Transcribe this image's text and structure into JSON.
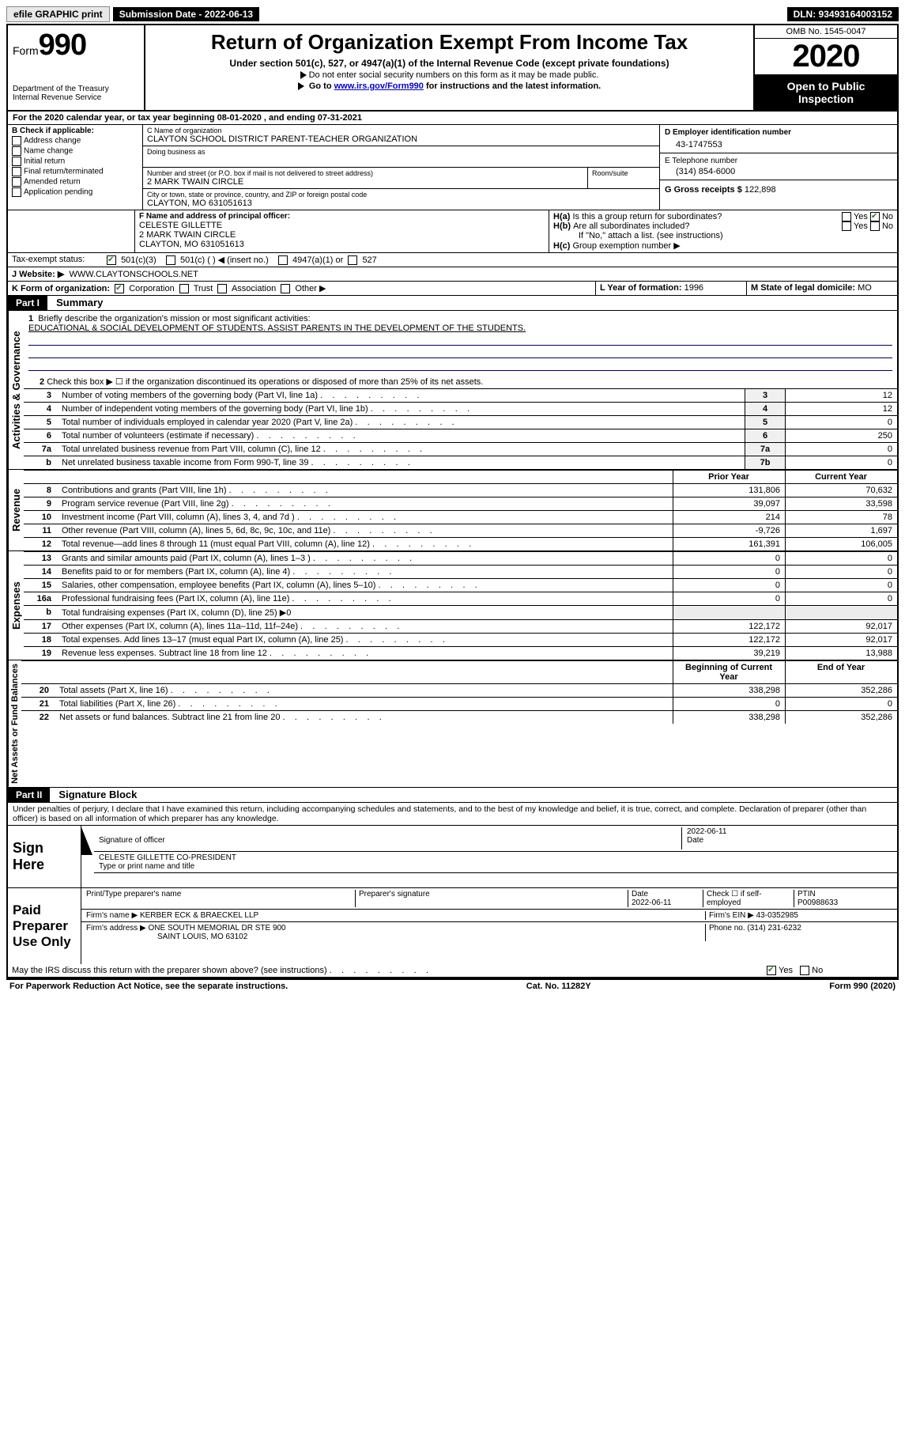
{
  "topbar": {
    "efile": "efile GRAPHIC print",
    "submission_label": "Submission Date - 2022-06-13",
    "dln_label": "DLN: 93493164003152"
  },
  "header": {
    "form_word": "Form",
    "form_number": "990",
    "dept": "Department of the Treasury",
    "irs": "Internal Revenue Service",
    "title": "Return of Organization Exempt From Income Tax",
    "subtitle": "Under section 501(c), 527, or 4947(a)(1) of the Internal Revenue Code (except private foundations)",
    "note1": "Do not enter social security numbers on this form as it may be made public.",
    "note2_pre": "Go to ",
    "note2_link": "www.irs.gov/Form990",
    "note2_post": " for instructions and the latest information.",
    "omb": "OMB No. 1545-0047",
    "year": "2020",
    "inspection1": "Open to Public",
    "inspection2": "Inspection"
  },
  "line_a": "For the 2020 calendar year, or tax year beginning 08-01-2020    , and ending 07-31-2021",
  "section_b": {
    "title": "B Check if applicable:",
    "items": [
      "Address change",
      "Name change",
      "Initial return",
      "Final return/terminated",
      "Amended return",
      "Application pending"
    ]
  },
  "section_c": {
    "name_label": "C Name of organization",
    "name": "CLAYTON SCHOOL DISTRICT PARENT-TEACHER ORGANIZATION",
    "dba_label": "Doing business as",
    "street_label": "Number and street (or P.O. box if mail is not delivered to street address)",
    "room_label": "Room/suite",
    "street": "2 MARK TWAIN CIRCLE",
    "city_label": "City or town, state or province, country, and ZIP or foreign postal code",
    "city": "CLAYTON, MO  631051613"
  },
  "section_d": {
    "label": "D Employer identification number",
    "value": "43-1747553"
  },
  "section_e": {
    "label": "E Telephone number",
    "value": "(314) 854-6000"
  },
  "section_g": {
    "label": "G Gross receipts $",
    "value": "122,898"
  },
  "section_f": {
    "label": "F Name and address of principal officer:",
    "name": "CELESTE GILLETTE",
    "street": "2 MARK TWAIN CIRCLE",
    "city": "CLAYTON, MO  631051613"
  },
  "section_h": {
    "a": "Is this a group return for subordinates?",
    "b": "Are all subordinates included?",
    "b_note": "If \"No,\" attach a list. (see instructions)",
    "c": "Group exemption number ▶",
    "yes": "Yes",
    "no": "No"
  },
  "tax_exempt": {
    "label": "Tax-exempt status:",
    "opt1": "501(c)(3)",
    "opt2": "501(c) (   ) ◀ (insert no.)",
    "opt3": "4947(a)(1) or",
    "opt4": "527"
  },
  "website": {
    "label": "J   Website: ▶",
    "value": "WWW.CLAYTONSCHOOLS.NET"
  },
  "line_k": {
    "label": "K Form of organization:",
    "corp": "Corporation",
    "trust": "Trust",
    "assoc": "Association",
    "other": "Other ▶"
  },
  "line_l": {
    "label": "L Year of formation:",
    "value": "1996"
  },
  "line_m": {
    "label": "M State of legal domicile:",
    "value": "MO"
  },
  "part1": {
    "bar": "Part I",
    "title": "Summary",
    "q1_label": "1",
    "q1": "Briefly describe the organization's mission or most significant activities:",
    "mission": "EDUCATIONAL & SOCIAL DEVELOPMENT OF STUDENTS. ASSIST PARENTS IN THE DEVELOPMENT OF THE STUDENTS.",
    "q2": "Check this box ▶ ☐  if the organization discontinued its operations or disposed of more than 25% of its net assets.",
    "side_gov": "Activities & Governance",
    "side_rev": "Revenue",
    "side_exp": "Expenses",
    "side_net": "Net Assets or Fund Balances",
    "rows_gov": [
      {
        "n": "3",
        "t": "Number of voting members of the governing body (Part VI, line 1a)",
        "box": "3",
        "v": "12"
      },
      {
        "n": "4",
        "t": "Number of independent voting members of the governing body (Part VI, line 1b)",
        "box": "4",
        "v": "12"
      },
      {
        "n": "5",
        "t": "Total number of individuals employed in calendar year 2020 (Part V, line 2a)",
        "box": "5",
        "v": "0"
      },
      {
        "n": "6",
        "t": "Total number of volunteers (estimate if necessary)",
        "box": "6",
        "v": "250"
      },
      {
        "n": "7a",
        "t": "Total unrelated business revenue from Part VIII, column (C), line 12",
        "box": "7a",
        "v": "0"
      },
      {
        "n": "b",
        "t": "Net unrelated business taxable income from Form 990-T, line 39",
        "box": "7b",
        "v": "0"
      }
    ],
    "col_prior": "Prior Year",
    "col_current": "Current Year",
    "rows_rev": [
      {
        "n": "8",
        "t": "Contributions and grants (Part VIII, line 1h)",
        "p": "131,806",
        "c": "70,632"
      },
      {
        "n": "9",
        "t": "Program service revenue (Part VIII, line 2g)",
        "p": "39,097",
        "c": "33,598"
      },
      {
        "n": "10",
        "t": "Investment income (Part VIII, column (A), lines 3, 4, and 7d )",
        "p": "214",
        "c": "78"
      },
      {
        "n": "11",
        "t": "Other revenue (Part VIII, column (A), lines 5, 6d, 8c, 9c, 10c, and 11e)",
        "p": "-9,726",
        "c": "1,697"
      },
      {
        "n": "12",
        "t": "Total revenue—add lines 8 through 11 (must equal Part VIII, column (A), line 12)",
        "p": "161,391",
        "c": "106,005"
      }
    ],
    "rows_exp": [
      {
        "n": "13",
        "t": "Grants and similar amounts paid (Part IX, column (A), lines 1–3 )",
        "p": "0",
        "c": "0"
      },
      {
        "n": "14",
        "t": "Benefits paid to or for members (Part IX, column (A), line 4)",
        "p": "0",
        "c": "0"
      },
      {
        "n": "15",
        "t": "Salaries, other compensation, employee benefits (Part IX, column (A), lines 5–10)",
        "p": "0",
        "c": "0"
      },
      {
        "n": "16a",
        "t": "Professional fundraising fees (Part IX, column (A), line 11e)",
        "p": "0",
        "c": "0"
      },
      {
        "n": "b",
        "t": "Total fundraising expenses (Part IX, column (D), line 25) ▶0",
        "p": "",
        "c": ""
      },
      {
        "n": "17",
        "t": "Other expenses (Part IX, column (A), lines 11a–11d, 11f–24e)",
        "p": "122,172",
        "c": "92,017"
      },
      {
        "n": "18",
        "t": "Total expenses. Add lines 13–17 (must equal Part IX, column (A), line 25)",
        "p": "122,172",
        "c": "92,017"
      },
      {
        "n": "19",
        "t": "Revenue less expenses. Subtract line 18 from line 12",
        "p": "39,219",
        "c": "13,988"
      }
    ],
    "col_begin": "Beginning of Current Year",
    "col_end": "End of Year",
    "rows_net": [
      {
        "n": "20",
        "t": "Total assets (Part X, line 16)",
        "p": "338,298",
        "c": "352,286"
      },
      {
        "n": "21",
        "t": "Total liabilities (Part X, line 26)",
        "p": "0",
        "c": "0"
      },
      {
        "n": "22",
        "t": "Net assets or fund balances. Subtract line 21 from line 20",
        "p": "338,298",
        "c": "352,286"
      }
    ]
  },
  "part2": {
    "bar": "Part II",
    "title": "Signature Block",
    "perjury": "Under penalties of perjury, I declare that I have examined this return, including accompanying schedules and statements, and to the best of my knowledge and belief, it is true, correct, and complete. Declaration of preparer (other than officer) is based on all information of which preparer has any knowledge."
  },
  "sign": {
    "left": "Sign Here",
    "sig_label": "Signature of officer",
    "date_label": "Date",
    "date": "2022-06-11",
    "name": "CELESTE GILLETTE CO-PRESIDENT",
    "name_label": "Type or print name and title"
  },
  "preparer": {
    "left": "Paid Preparer Use Only",
    "h1": "Print/Type preparer's name",
    "h2": "Preparer's signature",
    "h3": "Date",
    "date": "2022-06-11",
    "h4": "Check ☐ if self-employed",
    "h5": "PTIN",
    "ptin": "P00988633",
    "firm_label": "Firm's name    ▶",
    "firm": "KERBER ECK & BRAECKEL LLP",
    "ein_label": "Firm's EIN ▶",
    "ein": "43-0352985",
    "addr_label": "Firm's address ▶",
    "addr1": "ONE SOUTH MEMORIAL DR STE 900",
    "addr2": "SAINT LOUIS, MO  63102",
    "phone_label": "Phone no.",
    "phone": "(314) 231-6232"
  },
  "discuss": {
    "text": "May the IRS discuss this return with the preparer shown above? (see instructions)",
    "yes": "Yes",
    "no": "No"
  },
  "footer": {
    "left": "For Paperwork Reduction Act Notice, see the separate instructions.",
    "mid": "Cat. No. 11282Y",
    "right": "Form 990 (2020)"
  }
}
